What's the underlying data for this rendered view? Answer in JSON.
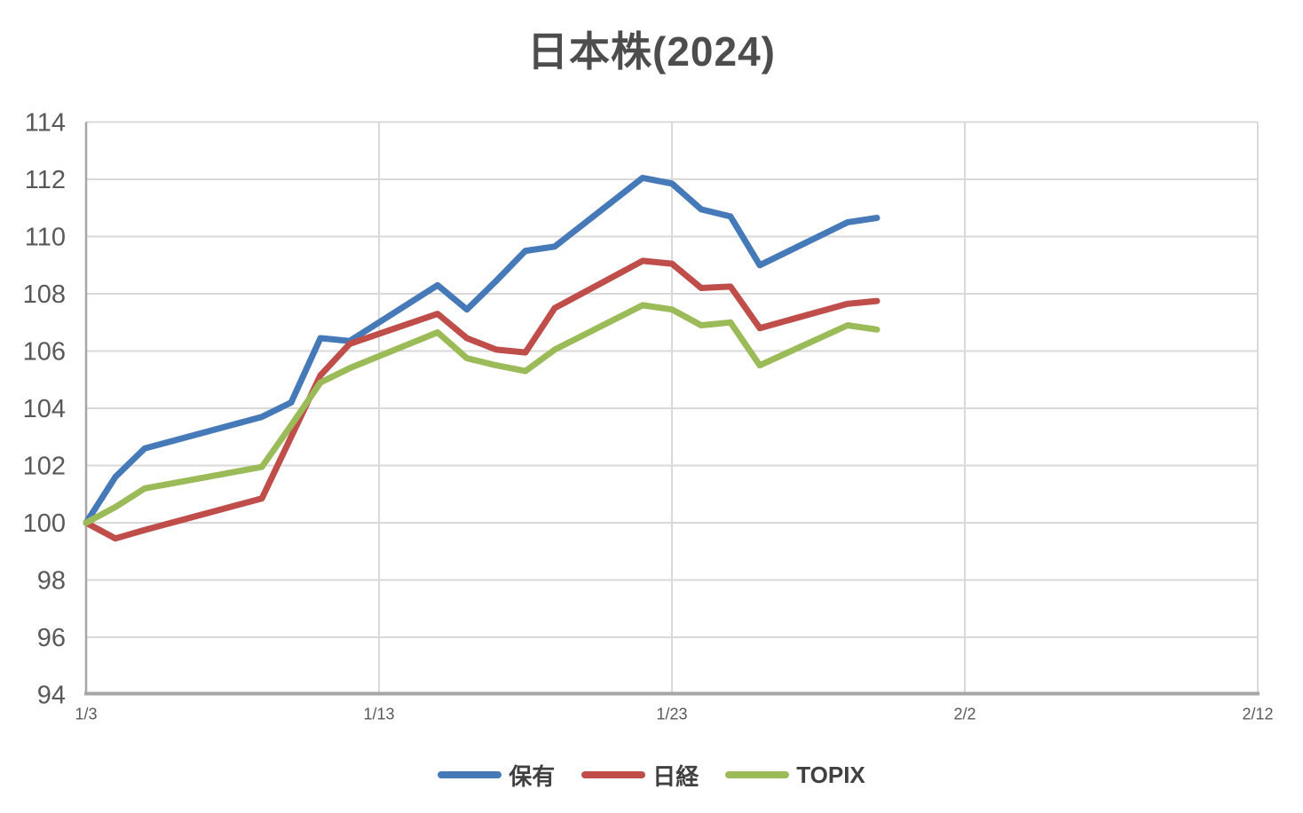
{
  "page": {
    "background": "#ffffff"
  },
  "chart_data": {
    "type": "line",
    "title": "日本株(2024)",
    "xlabel": "",
    "ylabel": "",
    "grid": true,
    "legend_position": "bottom",
    "x_axis": {
      "tick_labels": [
        "1/3",
        "1/13",
        "1/23",
        "2/2",
        "2/12"
      ],
      "tick_day_offsets": [
        0,
        10,
        20,
        30,
        40
      ],
      "range_days": [
        0,
        40
      ]
    },
    "y_axis": {
      "min": 94,
      "max": 114,
      "step": 2,
      "tick_labels": [
        "94",
        "96",
        "98",
        "100",
        "102",
        "104",
        "106",
        "108",
        "110",
        "112",
        "114"
      ]
    },
    "dates": [
      "1/3",
      "1/4",
      "1/5",
      "1/9",
      "1/10",
      "1/11",
      "1/12",
      "1/15",
      "1/16",
      "1/17",
      "1/18",
      "1/19",
      "1/22",
      "1/23",
      "1/24",
      "1/25",
      "1/26",
      "1/29",
      "1/30"
    ],
    "day_offsets": [
      0,
      1,
      2,
      6,
      7,
      8,
      9,
      12,
      13,
      14,
      15,
      16,
      19,
      20,
      21,
      22,
      23,
      26,
      27
    ],
    "series": [
      {
        "id": "hoyu",
        "name": "保有",
        "color": "#4579B8",
        "values": [
          100,
          101.6,
          102.6,
          103.7,
          104.2,
          106.45,
          106.35,
          108.3,
          107.45,
          108.45,
          109.5,
          109.65,
          112.05,
          111.85,
          110.95,
          110.7,
          109.0,
          110.5,
          110.65
        ]
      },
      {
        "id": "nikkei",
        "name": "日経",
        "color": "#BF4D4A",
        "values": [
          100,
          99.45,
          99.75,
          100.85,
          103.0,
          105.15,
          106.25,
          107.3,
          106.45,
          106.05,
          105.95,
          107.5,
          109.15,
          109.05,
          108.2,
          108.25,
          106.8,
          107.65,
          107.75
        ]
      },
      {
        "id": "topix",
        "name": "TOPIX",
        "color": "#9BBB59",
        "values": [
          100,
          100.55,
          101.2,
          101.95,
          103.4,
          104.9,
          105.4,
          106.65,
          105.75,
          105.5,
          105.3,
          106.05,
          107.6,
          107.45,
          106.9,
          107.0,
          105.5,
          106.9,
          106.75
        ]
      }
    ],
    "colors": {
      "gridline": "#D9D9D9",
      "axis_line": "#A6A6A6",
      "axis_text": "#595959",
      "title_text": "#4D4D4D",
      "legend_text": "#404040"
    }
  }
}
